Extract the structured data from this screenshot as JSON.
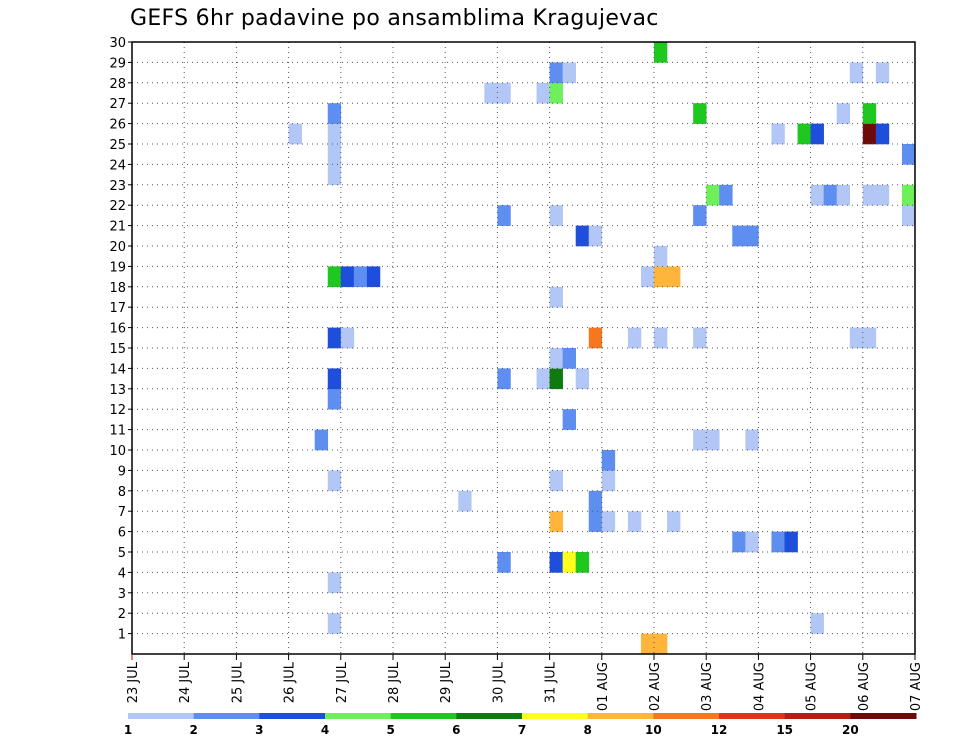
{
  "chart_data": {
    "type": "heatmap",
    "title": "GEFS 6hr padavine po ansamblima Kragujevac",
    "xlabel": "",
    "ylabel": "",
    "x_range": [
      0,
      60
    ],
    "x_unit": "6-hour step from 23 JUL 00Z",
    "y_range": [
      0,
      30
    ],
    "grid": true,
    "x_tick_labels": [
      "23 JUL",
      "24 JUL",
      "25 JUL",
      "26 JUL",
      "27 JUL",
      "28 JUL",
      "29 JUL",
      "30 JUL",
      "31 JUL",
      "01 AUG",
      "02 AUG",
      "03 AUG",
      "04 AUG",
      "05 AUG",
      "06 AUG",
      "07 AUG"
    ],
    "y_tick_labels": [
      "1",
      "2",
      "3",
      "4",
      "5",
      "6",
      "7",
      "8",
      "9",
      "10",
      "11",
      "12",
      "13",
      "14",
      "15",
      "16",
      "17",
      "18",
      "19",
      "20",
      "21",
      "22",
      "23",
      "24",
      "25",
      "26",
      "27",
      "28",
      "29",
      "30"
    ],
    "colorbar": {
      "labels": [
        "1",
        "2",
        "3",
        "4",
        "5",
        "6",
        "7",
        "8",
        "10",
        "12",
        "15",
        "20"
      ],
      "colors": [
        "#b3c7f7",
        "#5e8ef0",
        "#1e4fdc",
        "#6ef05a",
        "#1ec81e",
        "#0f7a0f",
        "#ffff1e",
        "#ffb43c",
        "#f5781e",
        "#e1321e",
        "#b41e14",
        "#6e0a0a"
      ]
    },
    "cells": [
      {
        "x": 15,
        "y": 1,
        "c": 0
      },
      {
        "x": 52,
        "y": 1,
        "c": 0
      },
      {
        "x": 15,
        "y": 3,
        "c": 0
      },
      {
        "x": 28,
        "y": 4,
        "c": 1
      },
      {
        "x": 32,
        "y": 4,
        "c": 2
      },
      {
        "x": 33,
        "y": 4,
        "c": 6
      },
      {
        "x": 34,
        "y": 4,
        "c": 4
      },
      {
        "x": 46,
        "y": 5,
        "c": 1
      },
      {
        "x": 47,
        "y": 5,
        "c": 0
      },
      {
        "x": 49,
        "y": 5,
        "c": 1
      },
      {
        "x": 50,
        "y": 5,
        "c": 2
      },
      {
        "x": 32,
        "y": 6,
        "c": 7
      },
      {
        "x": 35,
        "y": 6,
        "c": 1
      },
      {
        "x": 36,
        "y": 6,
        "c": 0
      },
      {
        "x": 38,
        "y": 6,
        "c": 0
      },
      {
        "x": 41,
        "y": 6,
        "c": 0
      },
      {
        "x": 25,
        "y": 7,
        "c": 0
      },
      {
        "x": 35,
        "y": 7,
        "c": 1
      },
      {
        "x": 15,
        "y": 8,
        "c": 0
      },
      {
        "x": 32,
        "y": 8,
        "c": 0
      },
      {
        "x": 36,
        "y": 8,
        "c": 0
      },
      {
        "x": 36,
        "y": 9,
        "c": 1
      },
      {
        "x": 14,
        "y": 10,
        "c": 1
      },
      {
        "x": 43,
        "y": 10,
        "c": 0
      },
      {
        "x": 44,
        "y": 10,
        "c": 0
      },
      {
        "x": 47,
        "y": 10,
        "c": 0
      },
      {
        "x": 33,
        "y": 11,
        "c": 1
      },
      {
        "x": 15,
        "y": 12,
        "c": 1
      },
      {
        "x": 15,
        "y": 13,
        "c": 2
      },
      {
        "x": 28,
        "y": 13,
        "c": 1
      },
      {
        "x": 31,
        "y": 13,
        "c": 0
      },
      {
        "x": 32,
        "y": 13,
        "c": 5
      },
      {
        "x": 34,
        "y": 13,
        "c": 0
      },
      {
        "x": 32,
        "y": 14,
        "c": 0
      },
      {
        "x": 33,
        "y": 14,
        "c": 1
      },
      {
        "x": 15,
        "y": 15,
        "c": 2
      },
      {
        "x": 16,
        "y": 15,
        "c": 0
      },
      {
        "x": 35,
        "y": 15,
        "c": 8
      },
      {
        "x": 38,
        "y": 15,
        "c": 0
      },
      {
        "x": 40,
        "y": 15,
        "c": 0
      },
      {
        "x": 43,
        "y": 15,
        "c": 0
      },
      {
        "x": 55,
        "y": 15,
        "c": 0
      },
      {
        "x": 56,
        "y": 15,
        "c": 0
      },
      {
        "x": 32,
        "y": 17,
        "c": 0
      },
      {
        "x": 15,
        "y": 18,
        "c": 4
      },
      {
        "x": 16,
        "y": 18,
        "c": 2
      },
      {
        "x": 17,
        "y": 18,
        "c": 1
      },
      {
        "x": 18,
        "y": 18,
        "c": 2
      },
      {
        "x": 39,
        "y": 18,
        "c": 0
      },
      {
        "x": 40,
        "y": 18,
        "c": 7
      },
      {
        "x": 41,
        "y": 18,
        "c": 7
      },
      {
        "x": 40,
        "y": 19,
        "c": 0
      },
      {
        "x": 34,
        "y": 20,
        "c": 2
      },
      {
        "x": 35,
        "y": 20,
        "c": 0
      },
      {
        "x": 46,
        "y": 20,
        "c": 1
      },
      {
        "x": 47,
        "y": 20,
        "c": 1
      },
      {
        "x": 28,
        "y": 21,
        "c": 1
      },
      {
        "x": 32,
        "y": 21,
        "c": 0
      },
      {
        "x": 43,
        "y": 21,
        "c": 1
      },
      {
        "x": 59,
        "y": 21,
        "c": 0
      },
      {
        "x": 44,
        "y": 22,
        "c": 3
      },
      {
        "x": 45,
        "y": 22,
        "c": 1
      },
      {
        "x": 52,
        "y": 22,
        "c": 0
      },
      {
        "x": 53,
        "y": 22,
        "c": 1
      },
      {
        "x": 54,
        "y": 22,
        "c": 0
      },
      {
        "x": 56,
        "y": 22,
        "c": 0
      },
      {
        "x": 57,
        "y": 22,
        "c": 0
      },
      {
        "x": 59,
        "y": 22,
        "c": 3
      },
      {
        "x": 15,
        "y": 23,
        "c": 0
      },
      {
        "x": 15,
        "y": 24,
        "c": 0
      },
      {
        "x": 59,
        "y": 24,
        "c": 1
      },
      {
        "x": 12,
        "y": 25,
        "c": 0
      },
      {
        "x": 15,
        "y": 25,
        "c": 0
      },
      {
        "x": 49,
        "y": 25,
        "c": 0
      },
      {
        "x": 51,
        "y": 25,
        "c": 4
      },
      {
        "x": 52,
        "y": 25,
        "c": 2
      },
      {
        "x": 56,
        "y": 25,
        "c": 11
      },
      {
        "x": 57,
        "y": 25,
        "c": 2
      },
      {
        "x": 15,
        "y": 26,
        "c": 1
      },
      {
        "x": 43,
        "y": 26,
        "c": 4
      },
      {
        "x": 54,
        "y": 26,
        "c": 0
      },
      {
        "x": 56,
        "y": 26,
        "c": 4
      },
      {
        "x": 27,
        "y": 27,
        "c": 0
      },
      {
        "x": 28,
        "y": 27,
        "c": 0
      },
      {
        "x": 31,
        "y": 27,
        "c": 0
      },
      {
        "x": 32,
        "y": 27,
        "c": 3
      },
      {
        "x": 32,
        "y": 28,
        "c": 1
      },
      {
        "x": 33,
        "y": 28,
        "c": 0
      },
      {
        "x": 55,
        "y": 28,
        "c": 0
      },
      {
        "x": 57,
        "y": 28,
        "c": 0
      },
      {
        "x": 40,
        "y": 29,
        "c": 4
      },
      {
        "x": 39,
        "y": 0,
        "c": 7
      },
      {
        "x": 40,
        "y": 0,
        "c": 7
      }
    ]
  }
}
